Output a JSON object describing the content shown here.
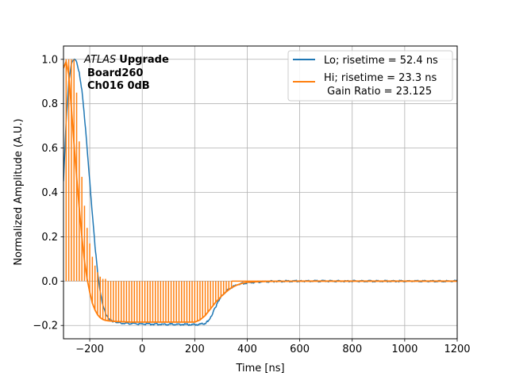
{
  "chart_data": {
    "type": "line",
    "xlabel": "Time [ns]",
    "ylabel": "Normalized Amplitude (A.U.)",
    "xlim": [
      -300,
      1200
    ],
    "ylim": [
      -0.26,
      1.06
    ],
    "grid": true,
    "legend_placement": "top-right",
    "x_ticks": [
      -200,
      0,
      200,
      400,
      600,
      800,
      1000,
      1200
    ],
    "x_tick_labels": [
      "−200",
      "0",
      "200",
      "400",
      "600",
      "800",
      "1000",
      "1200"
    ],
    "y_ticks": [
      -0.2,
      0.0,
      0.2,
      0.4,
      0.6,
      0.8,
      1.0
    ],
    "y_tick_labels": [
      "−0.2",
      "0.0",
      "0.2",
      "0.4",
      "0.6",
      "0.8",
      "1.0"
    ],
    "annotation": {
      "atlas": "ATLAS",
      "upgrade": "Upgrade",
      "board": "Board260",
      "channel": "Ch016 0dB"
    },
    "series": [
      {
        "name": "Lo; risetime = 52.4 ns",
        "color": "#1f77b4",
        "x": [
          -300,
          -290,
          -280,
          -270,
          -260,
          -250,
          -240,
          -230,
          -220,
          -210,
          -200,
          -190,
          -180,
          -170,
          -160,
          -150,
          -140,
          -130,
          -120,
          -110,
          -100,
          -80,
          -60,
          -40,
          -20,
          0,
          50,
          100,
          150,
          200,
          220,
          240,
          250,
          260,
          270,
          280,
          290,
          300,
          320,
          340,
          360,
          380,
          400,
          450,
          500,
          600,
          800,
          1000,
          1200
        ],
        "y": [
          0.45,
          0.72,
          0.9,
          0.98,
          1.0,
          0.99,
          0.94,
          0.86,
          0.74,
          0.6,
          0.45,
          0.3,
          0.16,
          0.04,
          -0.05,
          -0.11,
          -0.145,
          -0.165,
          -0.177,
          -0.183,
          -0.186,
          -0.189,
          -0.19,
          -0.191,
          -0.192,
          -0.193,
          -0.194,
          -0.195,
          -0.195,
          -0.196,
          -0.195,
          -0.19,
          -0.18,
          -0.165,
          -0.14,
          -0.115,
          -0.09,
          -0.07,
          -0.045,
          -0.028,
          -0.017,
          -0.011,
          -0.007,
          -0.003,
          -0.001,
          0.0,
          0.0,
          0.0,
          0.0
        ]
      },
      {
        "name": "Hi; risetime = 23.3 ns\n Gain Ratio = 23.125",
        "color": "#ff7f0e",
        "x": [
          -300,
          -290,
          -280,
          -270,
          -260,
          -250,
          -240,
          -230,
          -220,
          -210,
          -200,
          -190,
          -180,
          -170,
          -160,
          -150,
          -140,
          -130,
          -120,
          -110,
          -100,
          -80,
          -60,
          -40,
          -20,
          0,
          50,
          100,
          150,
          200,
          220,
          240,
          260,
          280,
          300,
          320,
          340,
          360,
          380,
          400,
          450,
          500,
          600,
          800,
          1000,
          1200
        ],
        "y": [
          0.96,
          0.99,
          0.93,
          0.78,
          0.62,
          0.47,
          0.33,
          0.2,
          0.09,
          0.01,
          -0.05,
          -0.1,
          -0.13,
          -0.152,
          -0.165,
          -0.173,
          -0.177,
          -0.179,
          -0.18,
          -0.181,
          -0.182,
          -0.183,
          -0.184,
          -0.185,
          -0.185,
          -0.185,
          -0.185,
          -0.185,
          -0.185,
          -0.185,
          -0.175,
          -0.155,
          -0.125,
          -0.095,
          -0.07,
          -0.048,
          -0.03,
          -0.018,
          -0.01,
          -0.005,
          -0.002,
          -0.001,
          0.0,
          0.0,
          0.0,
          0.0
        ],
        "spikes_x": [
          -290,
          -280,
          -270,
          -260,
          -250,
          -240,
          -230,
          -220,
          -210,
          -200,
          -190,
          -180,
          -170,
          -160,
          -150,
          -140,
          -130,
          -120,
          -110,
          -100,
          -90,
          -80,
          -70,
          -60,
          -50,
          -40,
          -30,
          -20,
          -10,
          0,
          10,
          20,
          30,
          40,
          50,
          60,
          70,
          80,
          90,
          100,
          110,
          120,
          130,
          140,
          150,
          160,
          170,
          180,
          190,
          200,
          210,
          220,
          230,
          240,
          250,
          260,
          270,
          280,
          290,
          300,
          310,
          320,
          330,
          340
        ],
        "spikes_y_top": [
          1.0,
          1.0,
          1.0,
          1.0,
          0.85,
          0.63,
          0.47,
          0.34,
          0.24,
          0.17,
          0.11,
          0.07,
          0.04,
          0.02,
          0.01,
          0.01,
          0.0,
          0.0,
          0.0,
          0.0,
          0.0,
          0.0,
          0.0,
          0.0,
          0.0,
          0.0,
          0.0,
          0.0,
          0.0,
          0.0,
          0.0,
          0.0,
          0.0,
          0.0,
          0.0,
          0.0,
          0.0,
          0.0,
          0.0,
          0.0,
          0.0,
          0.0,
          0.0,
          0.0,
          0.0,
          0.0,
          0.0,
          0.0,
          0.0,
          0.0,
          0.0,
          0.0,
          0.0,
          0.0,
          0.0,
          0.0,
          0.0,
          0.0,
          0.0,
          0.0,
          0.0,
          0.0,
          0.0,
          0.0
        ]
      }
    ]
  }
}
